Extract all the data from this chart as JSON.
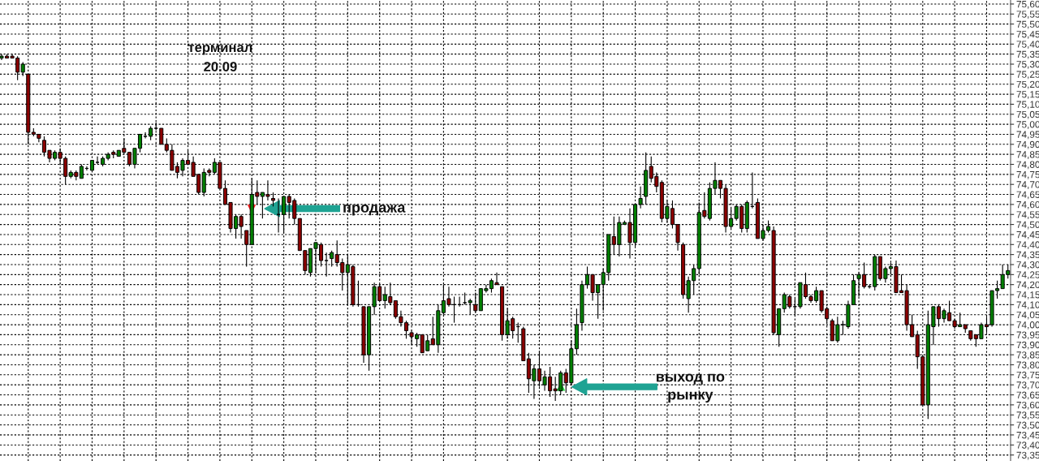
{
  "chart_data": {
    "type": "candlestick",
    "title": "терминал",
    "subtitle": "20.09",
    "annotations": [
      "продажа",
      "выход по\nрынку"
    ],
    "categories": [
      null,
      null,
      null,
      null,
      null,
      null,
      null,
      null,
      null,
      null,
      null,
      null,
      null,
      null,
      null,
      null,
      null,
      null,
      null,
      null,
      null,
      null,
      null,
      null,
      null,
      null,
      null,
      null,
      null,
      null,
      null,
      null,
      null,
      null,
      null,
      null,
      null,
      null,
      null,
      null,
      null,
      null,
      null,
      null,
      null,
      null,
      null,
      null,
      null,
      null,
      null,
      null,
      null,
      null,
      null,
      null,
      null,
      null,
      null,
      null,
      null,
      null,
      null,
      null,
      null,
      null,
      null,
      null,
      null,
      null,
      null,
      null,
      null,
      null,
      null,
      null,
      null,
      null,
      null,
      null,
      null,
      null,
      null,
      null,
      null,
      null,
      null,
      null,
      null,
      null,
      null,
      null,
      null,
      null,
      null,
      null,
      null,
      null,
      null,
      null,
      null,
      null,
      null,
      null,
      null,
      null,
      null,
      null,
      null,
      null,
      null,
      null,
      null,
      null,
      null,
      null,
      null,
      null,
      null,
      null,
      null,
      null,
      null,
      null,
      null,
      null,
      null,
      null,
      null,
      null,
      null,
      null,
      null,
      null,
      null,
      null,
      null,
      null,
      null,
      null,
      null,
      null,
      null,
      null,
      null,
      null,
      null,
      null,
      null,
      null,
      null,
      null,
      null,
      null,
      null,
      null,
      null,
      null,
      null,
      null,
      null,
      null,
      null,
      null,
      null,
      null,
      null,
      null,
      null,
      null,
      null,
      null,
      null,
      null,
      null,
      null,
      null,
      null,
      null,
      null,
      null,
      null,
      null,
      null,
      null,
      null,
      null,
      null,
      null,
      null
    ],
    "ohlc": [
      [
        75.33,
        75.35,
        75.32,
        75.34
      ],
      [
        75.34,
        75.35,
        75.33,
        75.33
      ],
      [
        75.34,
        75.35,
        75.33,
        75.33
      ],
      [
        75.33,
        75.34,
        75.22,
        75.26
      ],
      [
        75.26,
        75.31,
        75.24,
        75.3
      ],
      [
        75.25,
        75.25,
        74.9,
        74.96
      ],
      [
        74.96,
        74.98,
        74.94,
        74.95
      ],
      [
        74.95,
        74.95,
        74.91,
        74.93
      ],
      [
        74.92,
        74.94,
        74.84,
        74.86
      ],
      [
        74.87,
        74.87,
        74.81,
        74.83
      ],
      [
        74.83,
        74.87,
        74.82,
        74.86
      ],
      [
        74.86,
        74.88,
        74.8,
        74.83
      ],
      [
        74.83,
        74.84,
        74.7,
        74.74
      ],
      [
        74.74,
        74.77,
        74.73,
        74.76
      ],
      [
        74.76,
        74.77,
        74.72,
        74.74
      ],
      [
        74.73,
        74.8,
        74.73,
        74.79
      ],
      [
        74.78,
        74.79,
        74.77,
        74.78
      ],
      [
        74.77,
        74.82,
        74.77,
        74.82
      ],
      [
        74.81,
        74.84,
        74.8,
        74.81
      ],
      [
        74.8,
        74.84,
        74.79,
        74.83
      ],
      [
        74.83,
        74.86,
        74.82,
        74.85
      ],
      [
        74.86,
        74.87,
        74.83,
        74.85
      ],
      [
        74.84,
        74.87,
        74.84,
        74.87
      ],
      [
        74.88,
        74.93,
        74.86,
        74.86
      ],
      [
        74.86,
        74.86,
        74.79,
        74.8
      ],
      [
        74.8,
        74.88,
        74.78,
        74.88
      ],
      [
        74.88,
        74.95,
        74.86,
        74.95
      ],
      [
        74.94,
        74.96,
        74.93,
        74.94
      ],
      [
        74.94,
        74.99,
        74.92,
        74.98
      ],
      [
        74.98,
        75.01,
        74.97,
        74.98
      ],
      [
        74.98,
        74.98,
        74.9,
        74.9
      ],
      [
        74.9,
        74.93,
        74.86,
        74.87
      ],
      [
        74.87,
        74.9,
        74.77,
        74.77
      ],
      [
        74.79,
        74.81,
        74.73,
        74.76
      ],
      [
        74.77,
        74.83,
        74.74,
        74.82
      ],
      [
        74.82,
        74.87,
        74.8,
        74.8
      ],
      [
        74.81,
        74.84,
        74.74,
        74.74
      ],
      [
        74.75,
        74.75,
        74.65,
        74.66
      ],
      [
        74.66,
        74.78,
        74.64,
        74.76
      ],
      [
        74.77,
        74.78,
        74.74,
        74.76
      ],
      [
        74.76,
        74.83,
        74.75,
        74.81
      ],
      [
        74.81,
        74.81,
        74.68,
        74.68
      ],
      [
        74.68,
        74.72,
        74.6,
        74.6
      ],
      [
        74.61,
        74.61,
        74.46,
        74.48
      ],
      [
        74.48,
        74.55,
        74.43,
        74.54
      ],
      [
        74.54,
        74.55,
        74.43,
        74.49
      ],
      [
        74.47,
        74.47,
        74.29,
        74.4
      ],
      [
        74.4,
        74.73,
        74.4,
        74.65
      ],
      [
        74.66,
        74.72,
        74.6,
        74.64
      ],
      [
        74.64,
        74.66,
        74.53,
        74.66
      ],
      [
        74.65,
        74.72,
        74.62,
        74.64
      ],
      [
        74.63,
        74.66,
        74.59,
        74.62
      ],
      [
        74.55,
        74.63,
        74.46,
        74.55
      ],
      [
        74.55,
        74.64,
        74.46,
        74.64
      ],
      [
        74.64,
        74.65,
        74.53,
        74.61
      ],
      [
        74.62,
        74.63,
        74.5,
        74.53
      ],
      [
        74.53,
        74.53,
        74.37,
        74.37
      ],
      [
        74.37,
        74.37,
        74.25,
        74.27
      ],
      [
        74.26,
        74.38,
        74.24,
        74.38
      ],
      [
        74.38,
        74.41,
        74.26,
        74.41
      ],
      [
        74.4,
        74.41,
        74.29,
        74.32
      ],
      [
        74.32,
        74.36,
        74.24,
        74.32
      ],
      [
        74.33,
        74.37,
        74.29,
        74.36
      ],
      [
        74.35,
        74.42,
        74.29,
        74.31
      ],
      [
        74.31,
        74.33,
        74.17,
        74.26
      ],
      [
        74.26,
        74.35,
        74.1,
        74.3
      ],
      [
        74.29,
        74.3,
        74.09,
        74.1
      ],
      [
        74.1,
        74.22,
        74.09,
        74.1
      ],
      [
        74.09,
        74.09,
        73.81,
        73.85
      ],
      [
        73.85,
        74.09,
        73.77,
        74.09
      ],
      [
        74.09,
        74.21,
        74.05,
        74.19
      ],
      [
        74.19,
        74.2,
        74.12,
        74.12
      ],
      [
        74.12,
        74.19,
        74.08,
        74.15
      ],
      [
        74.14,
        74.21,
        74.1,
        74.11
      ],
      [
        74.12,
        74.12,
        74.03,
        74.04
      ],
      [
        74.04,
        74.07,
        73.99,
        74.01
      ],
      [
        74.01,
        74.02,
        73.93,
        73.97
      ],
      [
        73.96,
        73.97,
        73.9,
        73.94
      ],
      [
        73.93,
        73.96,
        73.89,
        73.95
      ],
      [
        73.95,
        73.95,
        73.86,
        73.86
      ],
      [
        73.87,
        73.95,
        73.87,
        73.92
      ],
      [
        73.93,
        74.04,
        73.9,
        73.9
      ],
      [
        73.9,
        74.1,
        73.86,
        74.07
      ],
      [
        74.06,
        74.2,
        74.05,
        74.12
      ],
      [
        74.13,
        74.19,
        74.09,
        74.1
      ],
      [
        74.1,
        74.14,
        74.01,
        74.1
      ],
      [
        74.1,
        74.14,
        74.09,
        74.1
      ],
      [
        74.11,
        74.16,
        74.1,
        74.11
      ],
      [
        74.11,
        74.13,
        74.05,
        74.12
      ],
      [
        74.1,
        74.16,
        74.06,
        74.07
      ],
      [
        74.07,
        74.18,
        74.07,
        74.18
      ],
      [
        74.17,
        74.2,
        74.16,
        74.18
      ],
      [
        74.18,
        74.23,
        74.16,
        74.22
      ],
      [
        74.21,
        74.26,
        74.2,
        74.2
      ],
      [
        74.19,
        74.19,
        73.92,
        73.95
      ],
      [
        73.95,
        74.08,
        73.93,
        74.02
      ],
      [
        74.03,
        74.04,
        73.93,
        73.97
      ],
      [
        73.99,
        74.01,
        73.91,
        73.99
      ],
      [
        73.98,
        73.99,
        73.82,
        73.82
      ],
      [
        73.83,
        73.86,
        73.66,
        73.73
      ],
      [
        73.72,
        73.8,
        73.63,
        73.78
      ],
      [
        73.78,
        73.87,
        73.69,
        73.72
      ],
      [
        73.7,
        73.77,
        73.67,
        73.74
      ],
      [
        73.74,
        73.79,
        73.64,
        73.67
      ],
      [
        73.68,
        73.74,
        73.62,
        73.67
      ],
      [
        73.67,
        73.77,
        73.65,
        73.76
      ],
      [
        73.76,
        73.78,
        73.66,
        73.71
      ],
      [
        73.71,
        73.92,
        73.7,
        73.88
      ],
      [
        73.88,
        74.08,
        73.85,
        74.0
      ],
      [
        74.01,
        74.22,
        73.97,
        74.2
      ],
      [
        74.2,
        74.29,
        74.18,
        74.25
      ],
      [
        74.25,
        74.25,
        74.12,
        74.16
      ],
      [
        74.16,
        74.2,
        74.03,
        74.2
      ],
      [
        74.2,
        74.28,
        74.07,
        74.26
      ],
      [
        74.26,
        74.45,
        74.22,
        74.45
      ],
      [
        74.44,
        74.54,
        74.35,
        74.4
      ],
      [
        74.4,
        74.54,
        74.34,
        74.51
      ],
      [
        74.5,
        74.52,
        74.5,
        74.51
      ],
      [
        74.51,
        74.58,
        74.33,
        74.41
      ],
      [
        74.41,
        74.6,
        74.39,
        74.6
      ],
      [
        74.6,
        74.69,
        74.58,
        74.63
      ],
      [
        74.64,
        74.86,
        74.6,
        74.77
      ],
      [
        74.79,
        74.84,
        74.71,
        74.73
      ],
      [
        74.74,
        74.76,
        74.66,
        74.69
      ],
      [
        74.71,
        74.72,
        74.51,
        74.53
      ],
      [
        74.53,
        74.62,
        74.51,
        74.59
      ],
      [
        74.58,
        74.62,
        74.48,
        74.5
      ],
      [
        74.5,
        74.5,
        74.37,
        74.41
      ],
      [
        74.4,
        74.41,
        74.13,
        74.15
      ],
      [
        74.13,
        74.24,
        74.06,
        74.22
      ],
      [
        74.22,
        74.3,
        74.15,
        74.28
      ],
      [
        74.28,
        74.61,
        74.25,
        74.56
      ],
      [
        74.57,
        74.66,
        74.53,
        74.54
      ],
      [
        74.53,
        74.71,
        74.52,
        74.68
      ],
      [
        74.68,
        74.81,
        74.65,
        74.72
      ],
      [
        74.72,
        74.72,
        74.63,
        74.68
      ],
      [
        74.68,
        74.7,
        74.46,
        74.49
      ],
      [
        74.49,
        74.58,
        74.48,
        74.53
      ],
      [
        74.53,
        74.6,
        74.52,
        74.59
      ],
      [
        74.59,
        74.6,
        74.46,
        74.48
      ],
      [
        74.48,
        74.62,
        74.46,
        74.61
      ],
      [
        74.59,
        74.76,
        74.58,
        74.59
      ],
      [
        74.61,
        74.63,
        74.43,
        74.43
      ],
      [
        74.43,
        74.5,
        74.42,
        74.47
      ],
      [
        74.47,
        74.52,
        74.46,
        74.49
      ],
      [
        74.47,
        74.49,
        73.95,
        73.96
      ],
      [
        73.95,
        74.08,
        73.89,
        74.08
      ],
      [
        74.08,
        74.16,
        74.06,
        74.15
      ],
      [
        74.14,
        74.15,
        74.08,
        74.09
      ],
      [
        74.09,
        74.13,
        74.05,
        74.09
      ],
      [
        74.09,
        74.21,
        74.08,
        74.21
      ],
      [
        74.2,
        74.26,
        74.13,
        74.14
      ],
      [
        74.14,
        74.15,
        74.11,
        74.12
      ],
      [
        74.12,
        74.19,
        74.11,
        74.17
      ],
      [
        74.17,
        74.17,
        74.06,
        74.07
      ],
      [
        74.08,
        74.09,
        74.01,
        74.03
      ],
      [
        74.02,
        74.03,
        73.92,
        73.92
      ],
      [
        73.92,
        74.04,
        73.91,
        74.0
      ],
      [
        74.0,
        74.02,
        73.95,
        74.0
      ],
      [
        73.99,
        74.12,
        73.98,
        74.1
      ],
      [
        74.1,
        74.25,
        74.1,
        74.22
      ],
      [
        74.23,
        74.26,
        74.14,
        74.25
      ],
      [
        74.25,
        74.31,
        74.18,
        74.19
      ],
      [
        74.19,
        74.2,
        74.18,
        74.19
      ],
      [
        74.19,
        74.35,
        74.17,
        74.34
      ],
      [
        74.34,
        74.34,
        74.22,
        74.23
      ],
      [
        74.23,
        74.29,
        74.21,
        74.28
      ],
      [
        74.28,
        74.31,
        74.25,
        74.29
      ],
      [
        74.29,
        74.32,
        74.16,
        74.16
      ],
      [
        74.17,
        74.25,
        74.16,
        74.16
      ],
      [
        74.17,
        74.2,
        73.97,
        74.0
      ],
      [
        74.0,
        74.05,
        73.94,
        73.94
      ],
      [
        73.95,
        73.97,
        73.78,
        73.84
      ],
      [
        73.84,
        73.84,
        73.6,
        73.6
      ],
      [
        73.6,
        74.07,
        73.53,
        74.0
      ],
      [
        73.99,
        74.09,
        73.9,
        74.09
      ],
      [
        74.09,
        74.1,
        73.99,
        74.03
      ],
      [
        74.03,
        74.08,
        74.01,
        74.07
      ],
      [
        74.06,
        74.12,
        74.02,
        74.02
      ],
      [
        74.02,
        74.03,
        73.98,
        73.99
      ],
      [
        73.99,
        74.06,
        73.99,
        74.0
      ],
      [
        74.0,
        74.0,
        73.96,
        73.98
      ],
      [
        73.97,
        73.97,
        73.92,
        73.93
      ],
      [
        73.95,
        73.95,
        73.89,
        73.93
      ],
      [
        73.93,
        74.01,
        73.93,
        74.0
      ],
      [
        74.0,
        74.04,
        73.96,
        73.99
      ],
      [
        74.0,
        74.17,
        73.99,
        74.17
      ],
      [
        74.17,
        74.22,
        74.13,
        74.18
      ],
      [
        74.18,
        74.3,
        74.18,
        74.25
      ],
      [
        74.25,
        74.3,
        74.23,
        74.27
      ]
    ],
    "colors": [
      "#008000",
      "#8b0000",
      "#8b0000",
      "#8b0000",
      "#008000",
      "#8b0000",
      "#8b0000",
      "#8b0000",
      "#8b0000",
      "#8b0000",
      "#008000",
      "#8b0000",
      "#8b0000",
      "#008000",
      "#8b0000",
      "#008000",
      "#000000",
      "#008000",
      "#000000",
      "#008000",
      "#008000",
      "#8b0000",
      "#008000",
      "#8b0000",
      "#8b0000",
      "#008000",
      "#008000",
      "#000000",
      "#008000",
      "#000000",
      "#8b0000",
      "#8b0000",
      "#8b0000",
      "#8b0000",
      "#008000",
      "#8b0000",
      "#8b0000",
      "#8b0000",
      "#008000",
      "#8b0000",
      "#008000",
      "#8b0000",
      "#8b0000",
      "#8b0000",
      "#008000",
      "#8b0000",
      "#8b0000",
      "#008000",
      "#8b0000",
      "#008000",
      "#8b0000",
      "#8b0000",
      "#000000",
      "#008000",
      "#8b0000",
      "#8b0000",
      "#8b0000",
      "#8b0000",
      "#008000",
      "#008000",
      "#8b0000",
      "#000000",
      "#008000",
      "#8b0000",
      "#8b0000",
      "#008000",
      "#8b0000",
      "#000000",
      "#8b0000",
      "#008000",
      "#008000",
      "#8b0000",
      "#008000",
      "#8b0000",
      "#8b0000",
      "#8b0000",
      "#8b0000",
      "#8b0000",
      "#008000",
      "#8b0000",
      "#008000",
      "#8b0000",
      "#008000",
      "#008000",
      "#8b0000",
      "#000000",
      "#000000",
      "#000000",
      "#008000",
      "#8b0000",
      "#008000",
      "#008000",
      "#008000",
      "#8b0000",
      "#8b0000",
      "#008000",
      "#8b0000",
      "#000000",
      "#8b0000",
      "#8b0000",
      "#008000",
      "#8b0000",
      "#008000",
      "#8b0000",
      "#8b0000",
      "#008000",
      "#8b0000",
      "#008000",
      "#008000",
      "#008000",
      "#008000",
      "#8b0000",
      "#008000",
      "#008000",
      "#008000",
      "#8b0000",
      "#008000",
      "#008000",
      "#8b0000",
      "#008000",
      "#008000",
      "#008000",
      "#8b0000",
      "#8b0000",
      "#8b0000",
      "#008000",
      "#8b0000",
      "#8b0000",
      "#8b0000",
      "#008000",
      "#008000",
      "#008000",
      "#8b0000",
      "#008000",
      "#008000",
      "#8b0000",
      "#8b0000",
      "#008000",
      "#008000",
      "#8b0000",
      "#008000",
      "#000000",
      "#8b0000",
      "#008000",
      "#008000",
      "#8b0000",
      "#008000",
      "#008000",
      "#8b0000",
      "#000000",
      "#008000",
      "#8b0000",
      "#8b0000",
      "#008000",
      "#8b0000",
      "#8b0000",
      "#8b0000",
      "#008000",
      "#000000",
      "#008000",
      "#008000",
      "#008000",
      "#8b0000",
      "#000000",
      "#008000",
      "#8b0000",
      "#008000",
      "#008000",
      "#8b0000",
      "#8b0000",
      "#8b0000",
      "#8b0000",
      "#8b0000",
      "#8b0000",
      "#008000",
      "#008000",
      "#8b0000",
      "#008000",
      "#8b0000",
      "#8b0000",
      "#008000",
      "#8b0000",
      "#8b0000",
      "#8b0000",
      "#008000",
      "#8b0000",
      "#008000",
      "#008000",
      "#008000",
      "#008000"
    ],
    "ylim": [
      73.32,
      75.62
    ],
    "yticks": [
      {
        "value": 73.35,
        "label": "73,35"
      },
      {
        "value": 73.4,
        "label": "73,40"
      },
      {
        "value": 73.45,
        "label": "73,45"
      },
      {
        "value": 73.5,
        "label": "73,50"
      },
      {
        "value": 73.55,
        "label": "73,55"
      },
      {
        "value": 73.6,
        "label": "73,60"
      },
      {
        "value": 73.65,
        "label": "73,65"
      },
      {
        "value": 73.7,
        "label": "73,70"
      },
      {
        "value": 73.75,
        "label": "73,75"
      },
      {
        "value": 73.8,
        "label": "73,80"
      },
      {
        "value": 73.85,
        "label": "73,85"
      },
      {
        "value": 73.9,
        "label": "73,90"
      },
      {
        "value": 73.95,
        "label": "73,95"
      },
      {
        "value": 74.0,
        "label": "74,00"
      },
      {
        "value": 74.05,
        "label": "74,05"
      },
      {
        "value": 74.1,
        "label": "74,10"
      },
      {
        "value": 74.15,
        "label": "74,15"
      },
      {
        "value": 74.2,
        "label": "74,20"
      },
      {
        "value": 74.25,
        "label": "74,25"
      },
      {
        "value": 74.3,
        "label": "74,30"
      },
      {
        "value": 74.35,
        "label": "74,35"
      },
      {
        "value": 74.4,
        "label": "74,40"
      },
      {
        "value": 74.45,
        "label": "74,45"
      },
      {
        "value": 74.5,
        "label": "74,50"
      },
      {
        "value": 74.55,
        "label": "74,55"
      },
      {
        "value": 74.6,
        "label": "74,60"
      },
      {
        "value": 74.65,
        "label": "74,65"
      },
      {
        "value": 74.7,
        "label": "74,70"
      },
      {
        "value": 74.75,
        "label": "74,75"
      },
      {
        "value": 74.8,
        "label": "74,80"
      },
      {
        "value": 74.85,
        "label": "74,85"
      },
      {
        "value": 74.9,
        "label": "74,90"
      },
      {
        "value": 74.95,
        "label": "74,95"
      },
      {
        "value": 75.0,
        "label": "75,00"
      },
      {
        "value": 75.05,
        "label": "75,05"
      },
      {
        "value": 75.1,
        "label": "75,10"
      },
      {
        "value": 75.15,
        "label": "75,15"
      },
      {
        "value": 75.2,
        "label": "75,20"
      },
      {
        "value": 75.25,
        "label": "75,25"
      },
      {
        "value": 75.3,
        "label": "75,30"
      },
      {
        "value": 75.35,
        "label": "75,35"
      },
      {
        "value": 75.4,
        "label": "75,40"
      },
      {
        "value": 75.45,
        "label": "75,45"
      },
      {
        "value": 75.5,
        "label": "75,50"
      },
      {
        "value": 75.55,
        "label": "75,55"
      },
      {
        "value": 75.6,
        "label": "75,60"
      }
    ],
    "grid": true,
    "tick_labels": "y"
  }
}
